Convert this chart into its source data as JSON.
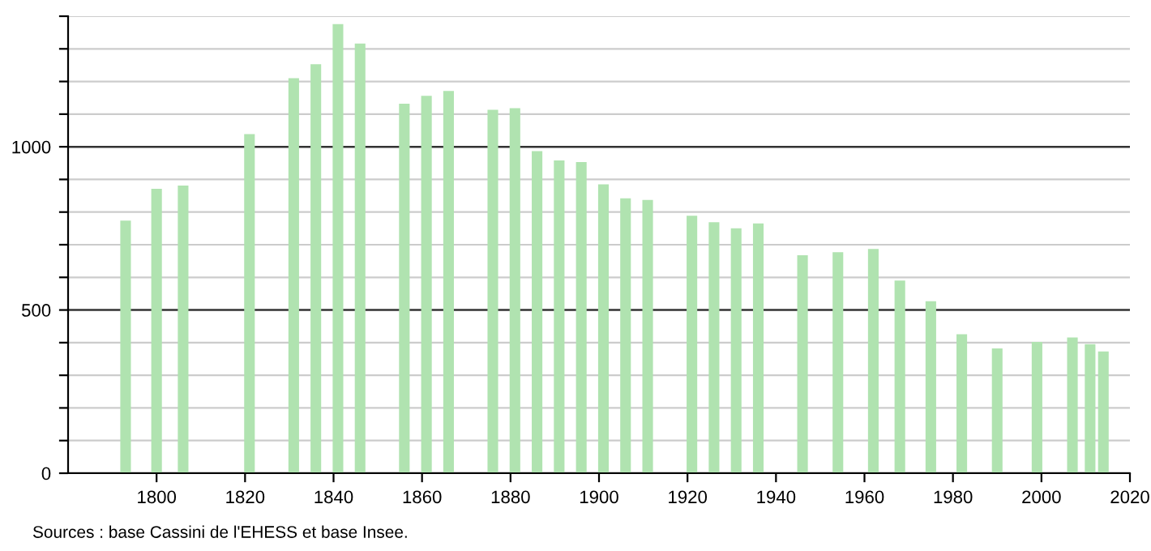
{
  "chart_data": {
    "type": "bar",
    "x": [
      1793,
      1800,
      1806,
      1821,
      1831,
      1836,
      1841,
      1846,
      1856,
      1861,
      1866,
      1876,
      1881,
      1886,
      1891,
      1896,
      1901,
      1906,
      1911,
      1921,
      1926,
      1931,
      1936,
      1946,
      1954,
      1962,
      1968,
      1975,
      1982,
      1990,
      1999,
      2007,
      2011,
      2014
    ],
    "series": [
      {
        "color": "#b0e3b0",
        "values": [
          774,
          871,
          881,
          1039,
          1210,
          1253,
          1376,
          1316,
          1132,
          1156,
          1171,
          1113,
          1118,
          987,
          958,
          953,
          885,
          842,
          837,
          789,
          769,
          750,
          765,
          668,
          677,
          687,
          590,
          527,
          426,
          382,
          402,
          416,
          395,
          373
        ]
      }
    ],
    "xlim": [
      1780,
      2020
    ],
    "xticks": [
      1800,
      1820,
      1840,
      1860,
      1880,
      1900,
      1920,
      1940,
      1960,
      1980,
      2000,
      2020
    ],
    "ylim": [
      0,
      1400
    ],
    "yticks": [
      0,
      {
        "value": 100,
        "label": null
      },
      {
        "value": 200,
        "label": null
      },
      {
        "value": 300,
        "label": null
      },
      {
        "value": 400,
        "label": null
      },
      500,
      {
        "value": 600,
        "label": null
      },
      {
        "value": 700,
        "label": null
      },
      {
        "value": 800,
        "label": null
      },
      {
        "value": 900,
        "label": null
      },
      1000,
      {
        "value": 1100,
        "label": null
      },
      {
        "value": 1200,
        "label": null
      },
      {
        "value": 1300,
        "label": null
      },
      {
        "value": 1400,
        "label": null
      }
    ],
    "grid": "y",
    "annotations": [
      "Sources : base Cassini de l'EHESS et base Insee."
    ]
  }
}
